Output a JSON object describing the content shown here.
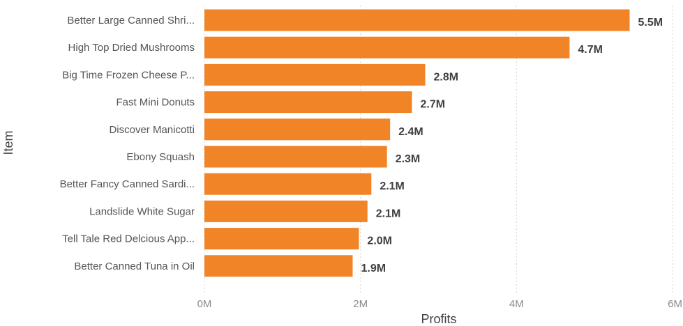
{
  "chart_data": {
    "type": "bar",
    "orientation": "horizontal",
    "title": "",
    "xlabel": "Profits",
    "ylabel": "Item",
    "xlim": [
      0,
      6000000
    ],
    "x_ticks": [
      0,
      2000000,
      4000000,
      6000000
    ],
    "x_tick_labels": [
      "0M",
      "2M",
      "4M",
      "6M"
    ],
    "grid": true,
    "bar_color": "#F08426",
    "categories": [
      "Better Large Canned Shri...",
      "High Top Dried Mushrooms",
      "Big Time Frozen Cheese P...",
      "Fast Mini Donuts",
      "Discover Manicotti",
      "Ebony Squash",
      "Better Fancy Canned Sardi...",
      "Landslide White Sugar",
      "Tell Tale Red Delcious App...",
      "Better Canned Tuna in Oil"
    ],
    "values": [
      5450000,
      4680000,
      2830000,
      2660000,
      2380000,
      2340000,
      2140000,
      2090000,
      1980000,
      1900000
    ],
    "data_labels": [
      "5.5M",
      "4.7M",
      "2.8M",
      "2.7M",
      "2.4M",
      "2.3M",
      "2.1M",
      "2.1M",
      "2.0M",
      "1.9M"
    ]
  }
}
